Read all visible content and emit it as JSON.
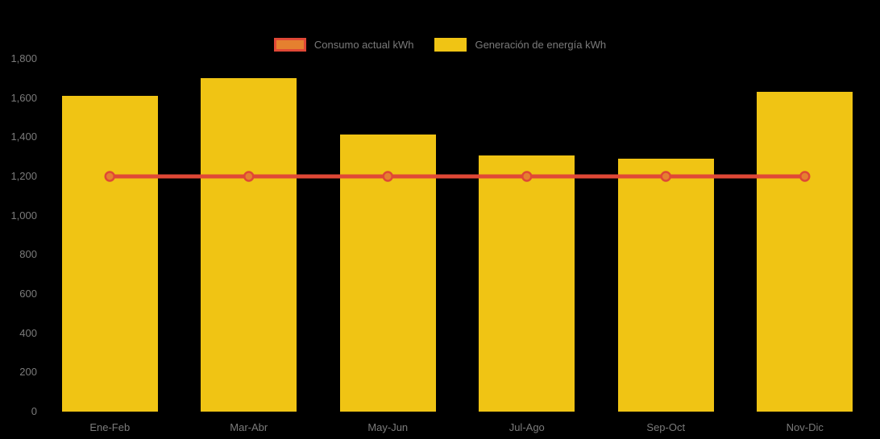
{
  "page": {
    "background": "#000000",
    "text_color": "#7b7b7b"
  },
  "legend": {
    "items": [
      {
        "label": "Consumo actual kWh",
        "swatch_fill": "#E5802F",
        "swatch_border": "#E04836"
      },
      {
        "label": "Generación de energía kWh",
        "swatch_fill": "#F0C414"
      }
    ]
  },
  "chart_data": {
    "type": "bar",
    "title": "",
    "xlabel": "",
    "ylabel": "",
    "categories": [
      "Ene-Feb",
      "Mar-Abr",
      "May-Jun",
      "Jul-Ago",
      "Sep-Oct",
      "Nov-Dic"
    ],
    "series": [
      {
        "name": "Consumo actual kWh",
        "type": "line",
        "color": "#E04836",
        "marker_fill": "#E5802F",
        "values": [
          1200,
          1200,
          1200,
          1200,
          1200,
          1200
        ]
      },
      {
        "name": "Generación de energía kWh",
        "type": "bar",
        "color": "#F0C414",
        "values": [
          1610,
          1700,
          1415,
          1305,
          1290,
          1630
        ]
      }
    ],
    "ylim": [
      0,
      1800
    ],
    "ytick_step": 200,
    "ytick_labels": [
      "0",
      "200",
      "400",
      "600",
      "800",
      "1,000",
      "1,200",
      "1,400",
      "1,600",
      "1,800"
    ],
    "grid": false,
    "legend_position": "top-center"
  }
}
